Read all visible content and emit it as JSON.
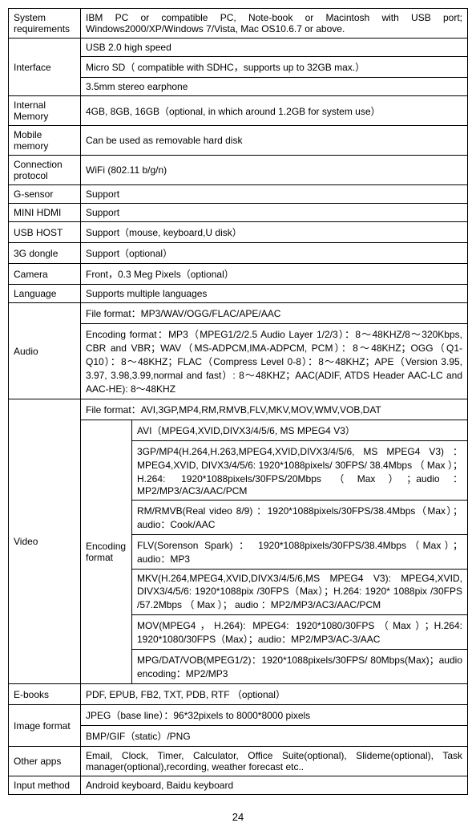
{
  "rows": {
    "system_requirements": {
      "label": "System requirements",
      "value": "IBM PC or compatible PC, Note-book or Macintosh with USB port; Windows2000/XP/Windows 7/Vista, Mac OS10.6.7 or above."
    },
    "interface": {
      "label": "Interface",
      "r1": "USB 2.0    high speed",
      "r2": "Micro SD（ compatible with SDHC，supports up to 32GB max.）",
      "r3": "3.5mm stereo earphone"
    },
    "internal_memory": {
      "label": "Internal Memory",
      "value": "4GB, 8GB, 16GB（optional, in which around 1.2GB for system use）"
    },
    "mobile_memory": {
      "label": "Mobile memory",
      "value": "Can be used as removable hard disk"
    },
    "connection_protocol": {
      "label": "Connection protocol",
      "value": "WiFi (802.11 b/g/n)"
    },
    "g_sensor": {
      "label": "G-sensor",
      "value": "Support"
    },
    "mini_hdmi": {
      "label": "MINI    HDMI",
      "value": "Support"
    },
    "usb_host": {
      "label": "USB HOST",
      "value": "Support（mouse, keyboard,U disk）"
    },
    "dongle_3g": {
      "label": "3G dongle",
      "value": "Support（optional）"
    },
    "camera": {
      "label": "Camera",
      "value": "Front，0.3 Meg Pixels（optional）"
    },
    "language": {
      "label": "Language",
      "value": "Supports multiple languages"
    },
    "audio": {
      "label": "Audio",
      "r1": "File format：MP3/WAV/OGG/FLAC/APE/AAC",
      "r2": "Encoding format：MP3（MPEG1/2/2.5 Audio Layer 1/2/3）：8～48KHZ/8～320Kbps, CBR and VBR；WAV（MS-ADPCM,IMA-ADPCM, PCM）：8～48KHZ；OGG（Q1- Q10）：8～48KHZ；FLAC（Compress Level 0-8）：8～48KHZ；APE（Version 3.95, 3.97, 3.98,3.99,normal and fast）:    8～48KHZ；AAC(ADIF, ATDS Header AAC-LC and AAC-HE):    8～48KHZ"
    },
    "video": {
      "label": "Video",
      "r1": "File format：AVI,3GP,MP4,RM,RMVB,FLV,MKV,MOV,WMV,VOB,DAT",
      "enc_label": "Encoding format",
      "enc1": "AVI（MPEG4,XVID,DIVX3/4/5/6, MS MPEG4 V3）",
      "enc2": "3GP/MP4(H.264,H.263,MPEG4,XVID,DIVX3/4/5/6, MS MPEG4 V3) ： MPEG4,XVID, DIVX3/4/5/6: 1920*1088pixels/ 30FPS/ 38.4Mbps （ Max ）； H.264: 1920*1088pixels/30FPS/20Mbps（Max）；audio：MP2/MP3/AC3/AAC/PCM",
      "enc3": "RM/RMVB(Real video 8/9)  ：1920*1088pixels/30FPS/38.4Mbps（Max）；audio：Cook/AAC",
      "enc4": "FLV(Sorenson Spark) ： 1920*1088pixels/30FPS/38.4Mbps（Max）；audio：MP3",
      "enc5": "MKV(H.264,MPEG4,XVID,DIVX3/4/5/6,MS MPEG4 V3): MPEG4,XVID, DIVX3/4/5/6: 1920*1088pix /30FPS（Max）；H.264: 1920* 1088pix /30FPS /57.2Mbps （ Max ）； audio ：MP2/MP3/AC3/AAC/PCM",
      "enc6": "MOV(MPEG4，H.264): MPEG4: 1920*1080/30FPS（Max）；H.264: 1920*1080/30FPS（Max）；audio：MP2/MP3/AC-3/AAC",
      "enc7": "MPG/DAT/VOB(MPEG1/2)：1920*1088pixels/30FPS/ 80Mbps(Max)；audio encoding：MP2/MP3"
    },
    "ebooks": {
      "label": "E-books",
      "value": "PDF, EPUB, FB2, TXT, PDB, RTF  （optional）"
    },
    "image_format": {
      "label": "Image format",
      "r1": "JPEG（base line）：96*32pixels to 8000*8000 pixels",
      "r2": "BMP/GIF（static）/PNG"
    },
    "other_apps": {
      "label": "Other apps",
      "value": "Email, Clock, Timer, Calculator, Office Suite(optional), Slideme(optional), Task manager(optional),recording, weather forecast etc.."
    },
    "input_method": {
      "label": "Input method",
      "value": "Android keyboard, Baidu keyboard"
    }
  },
  "page_number": "24"
}
